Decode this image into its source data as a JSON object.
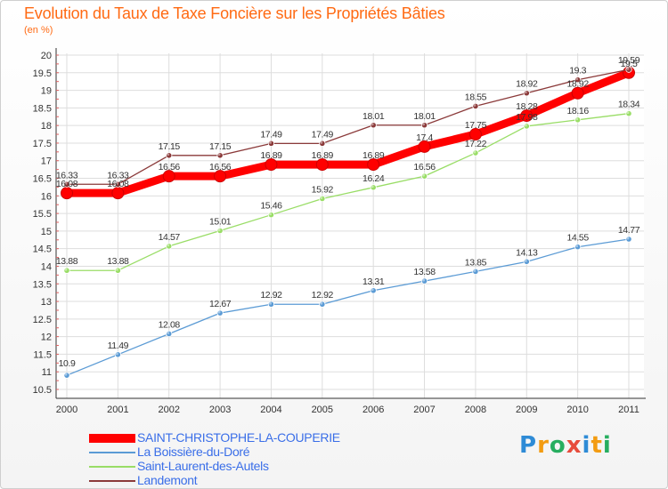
{
  "title": "Evolution du Taux de Taxe Foncière sur les Propriétés Bâties",
  "subtitle": "(en %)",
  "logo": {
    "text": "Proxiti",
    "letters": [
      {
        "ch": "P",
        "color": "#2e8bd6"
      },
      {
        "ch": "r",
        "color": "#f39c12"
      },
      {
        "ch": "o",
        "color": "#27ae60"
      },
      {
        "ch": "x",
        "color": "#e74c3c"
      },
      {
        "ch": "i",
        "color": "#2e8bd6"
      },
      {
        "ch": "t",
        "color": "#f39c12"
      },
      {
        "ch": "i",
        "color": "#27ae60"
      }
    ]
  },
  "chart_data": {
    "type": "line",
    "title": "Evolution du Taux de Taxe Foncière sur les Propriétés Bâties",
    "ylabel": "(en %)",
    "x": [
      "2000",
      "2001",
      "2002",
      "2003",
      "2004",
      "2005",
      "2006",
      "2007",
      "2008",
      "2009",
      "2010",
      "2011"
    ],
    "ylim": [
      10.5,
      20
    ],
    "yticks": [
      "10.5",
      "11",
      "11.5",
      "12",
      "12.5",
      "13",
      "13.5",
      "14",
      "14.5",
      "15",
      "15.5",
      "16",
      "16.5",
      "17",
      "17.5",
      "18",
      "18.5",
      "19",
      "19.5",
      "20"
    ],
    "grid": true,
    "legend_position": "bottom-left",
    "series": [
      {
        "name": "SAINT-CHRISTOPHE-LA-COUPERIE",
        "color": "#ff0000",
        "values": [
          16.08,
          16.08,
          16.56,
          16.56,
          16.89,
          16.89,
          16.89,
          17.4,
          17.75,
          18.28,
          18.92,
          19.5
        ],
        "labels": [
          "16.08",
          "16.08",
          "16.56",
          "16.56",
          "16.89",
          "16.89",
          "16.89",
          "17.4",
          "17.75",
          "18.28",
          "18.92",
          "19.5"
        ]
      },
      {
        "name": "La Boissière-du-Doré",
        "color": "#5b9bd5",
        "values": [
          10.9,
          11.49,
          12.08,
          12.67,
          12.92,
          12.92,
          13.31,
          13.58,
          13.85,
          14.13,
          14.55,
          14.77
        ],
        "labels": [
          "10.9",
          "11.49",
          "12.08",
          "12.67",
          "12.92",
          "12.92",
          "13.31",
          "13.58",
          "13.85",
          "14.13",
          "14.55",
          "14.77"
        ]
      },
      {
        "name": "Saint-Laurent-des-Autels",
        "color": "#99dd66",
        "values": [
          13.88,
          13.88,
          14.57,
          15.01,
          15.46,
          15.92,
          16.24,
          16.56,
          17.22,
          17.98,
          18.16,
          18.34
        ],
        "labels": [
          "13.88",
          "13.88",
          "14.57",
          "15.01",
          "15.46",
          "15.92",
          "16.24",
          "16.56",
          "17.22",
          "17.98",
          "18.16",
          "18.34"
        ]
      },
      {
        "name": "Landemont",
        "color": "#8b3a3a",
        "values": [
          16.33,
          16.33,
          17.15,
          17.15,
          17.49,
          17.49,
          18.01,
          18.01,
          18.55,
          18.92,
          19.3,
          19.59
        ],
        "labels": [
          "16.33",
          "16.33",
          "17.15",
          "17.15",
          "17.49",
          "17.49",
          "18.01",
          "18.01",
          "18.55",
          "18.92",
          "19.3",
          "19.59"
        ]
      }
    ]
  }
}
